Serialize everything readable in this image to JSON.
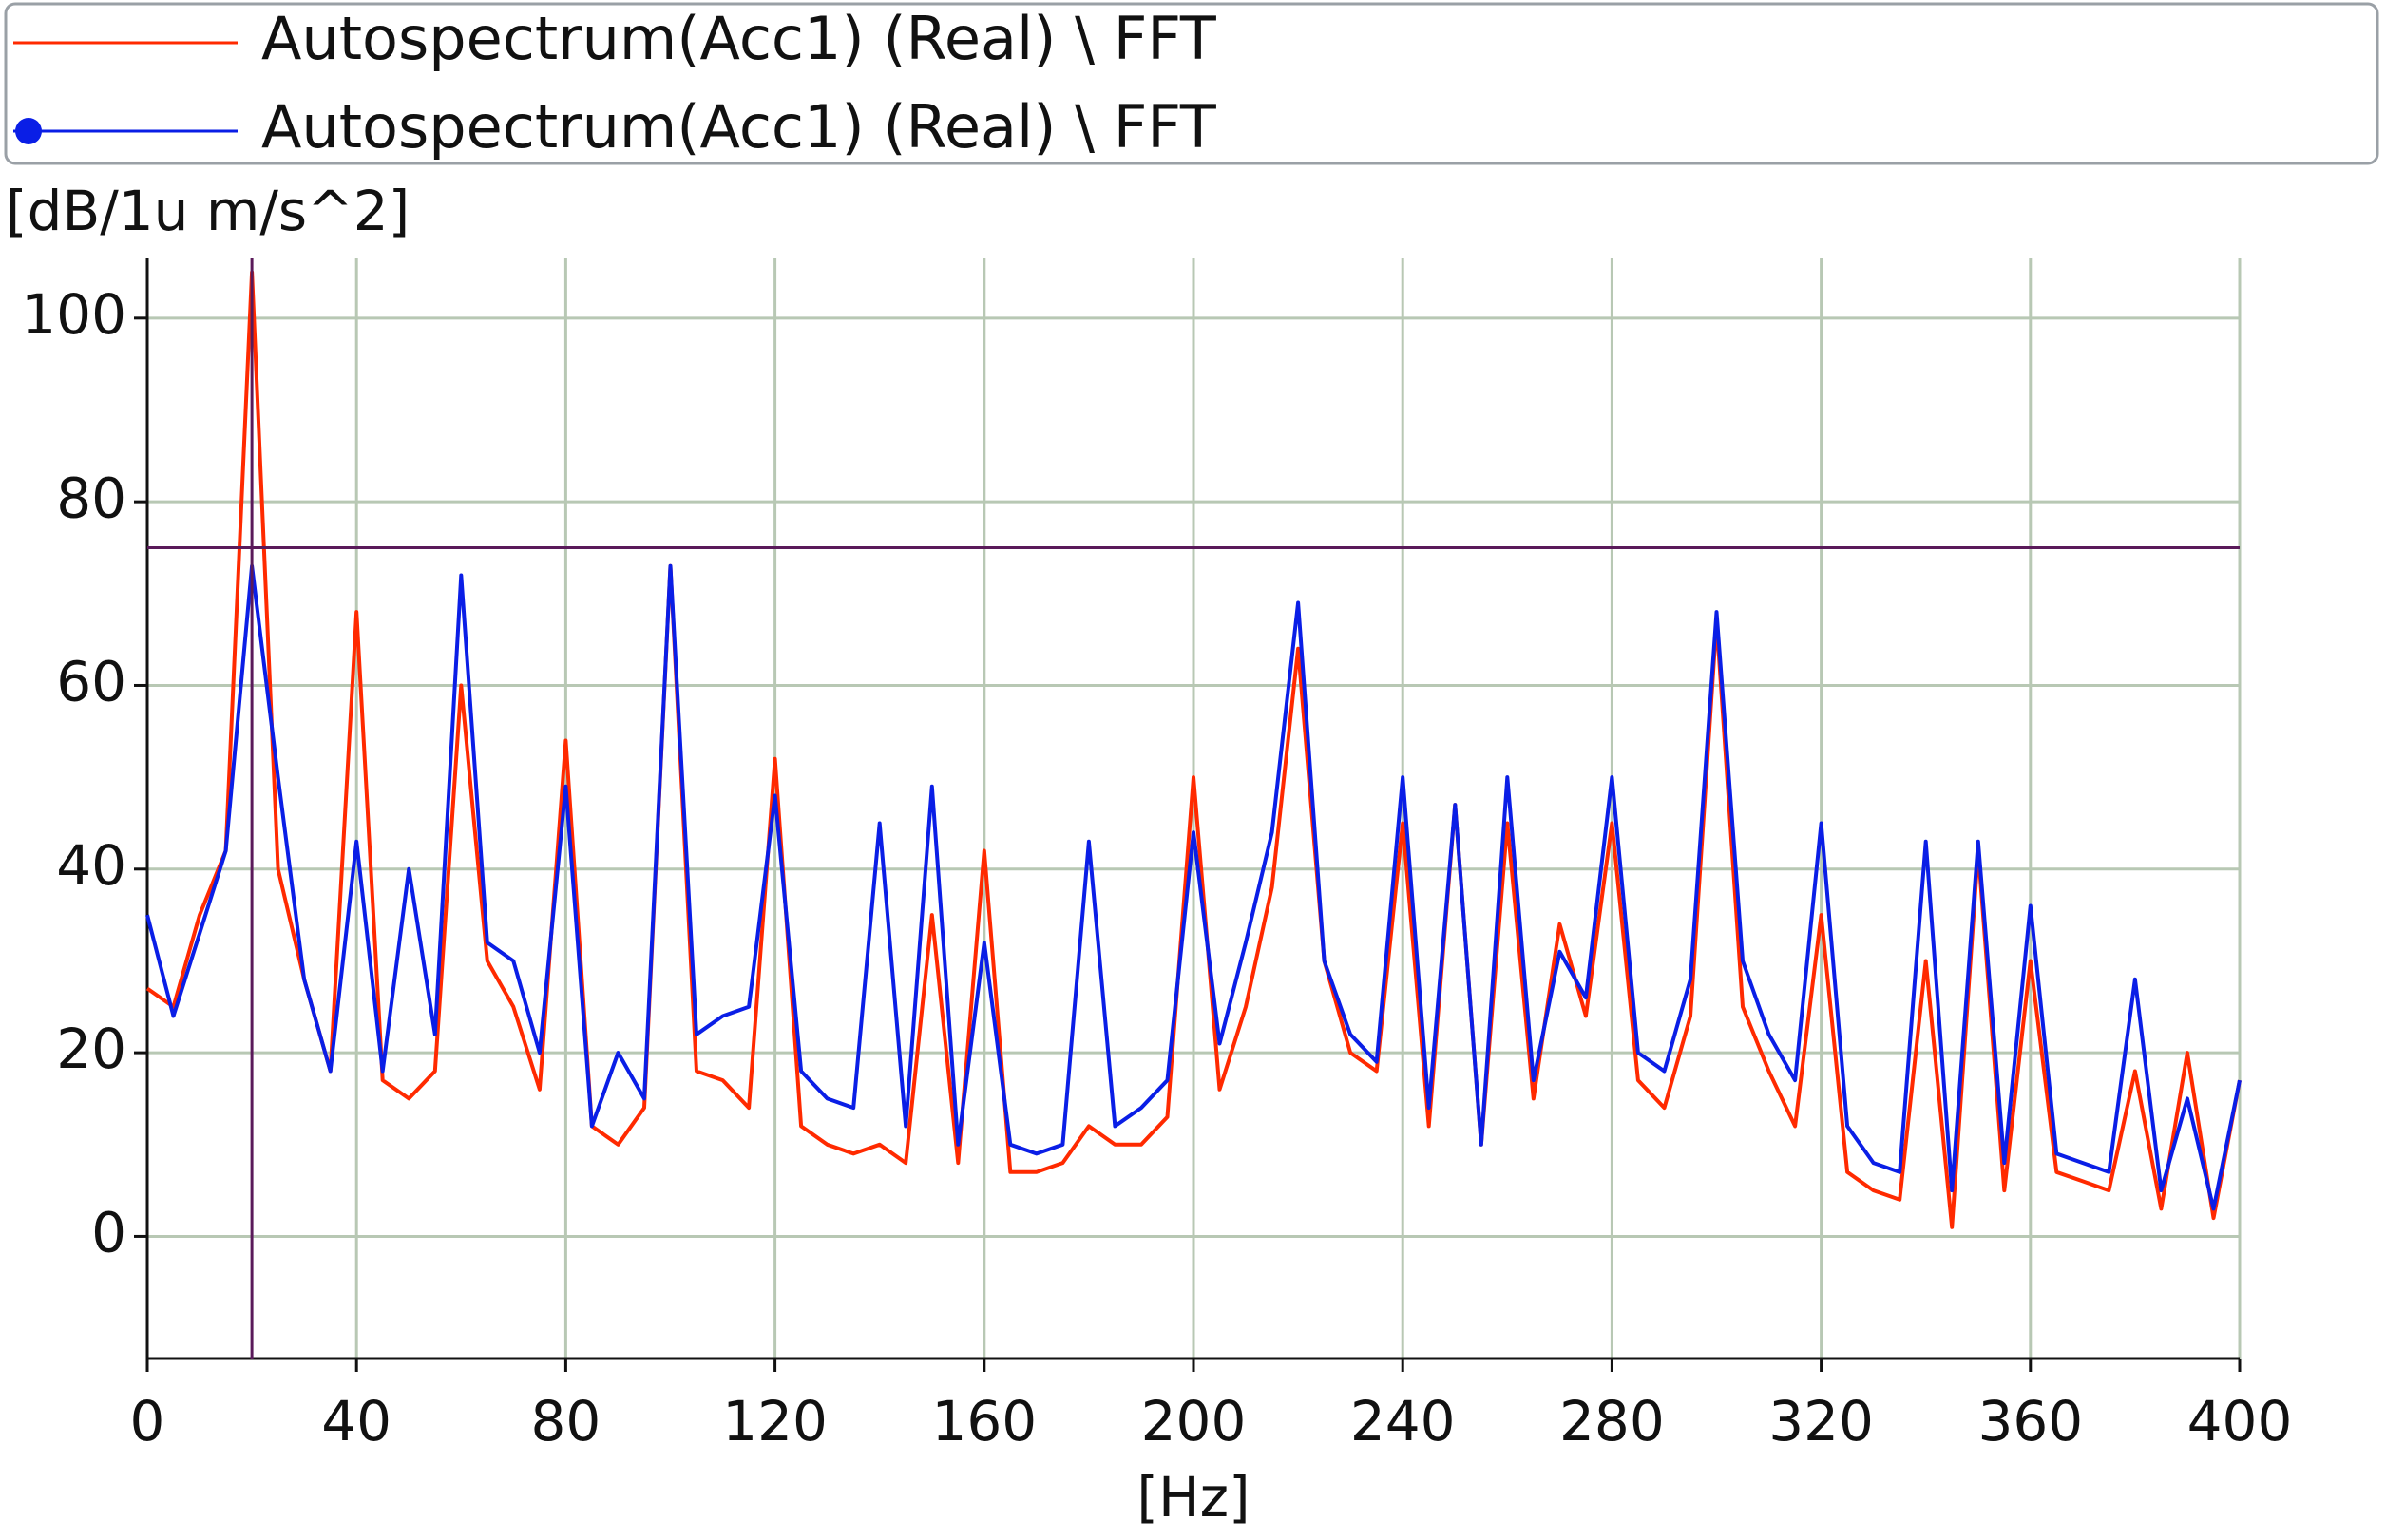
{
  "chart_data": {
    "type": "line",
    "y_label": "[dB/1u m/s^2]",
    "x_label": "[Hz]",
    "x": [
      0,
      5,
      10,
      15,
      20,
      25,
      30,
      35,
      40,
      45,
      50,
      55,
      60,
      65,
      70,
      75,
      80,
      85,
      90,
      95,
      100,
      105,
      110,
      115,
      120,
      125,
      130,
      135,
      140,
      145,
      150,
      155,
      160,
      165,
      170,
      175,
      180,
      185,
      190,
      195,
      200,
      205,
      210,
      215,
      220,
      225,
      230,
      235,
      240,
      245,
      250,
      255,
      260,
      265,
      270,
      275,
      280,
      285,
      290,
      295,
      300,
      305,
      310,
      315,
      320,
      325,
      330,
      335,
      340,
      345,
      350,
      355,
      360,
      365,
      370,
      375,
      380,
      385,
      390,
      395,
      400
    ],
    "series": [
      {
        "name": "Autospectrum(Acc1) (Real) \\ FFT",
        "color": "#ff2a00",
        "values": [
          27,
          25,
          35,
          42,
          105,
          40,
          28,
          18,
          68,
          17,
          15,
          18,
          60,
          30,
          25,
          16,
          54,
          12,
          10,
          14,
          73,
          18,
          17,
          14,
          52,
          12,
          10,
          9,
          10,
          8,
          35,
          8,
          42,
          7,
          7,
          8,
          12,
          10,
          10,
          13,
          50,
          16,
          25,
          38,
          64,
          30,
          20,
          18,
          45,
          12,
          47,
          10,
          45,
          15,
          34,
          24,
          45,
          17,
          14,
          24,
          67,
          25,
          18,
          12,
          35,
          7,
          5,
          4,
          30,
          1,
          42,
          5,
          30,
          7,
          6,
          5,
          18,
          3,
          20,
          2,
          17
        ]
      },
      {
        "name": "Autospectrum(Acc1) (Real) \\ FFT",
        "color": "#0a1ee6",
        "marker": "circle",
        "values": [
          35,
          24,
          33,
          42,
          73,
          50,
          28,
          18,
          43,
          18,
          40,
          22,
          72,
          32,
          30,
          20,
          49,
          12,
          20,
          15,
          73,
          22,
          24,
          25,
          48,
          18,
          15,
          14,
          45,
          12,
          49,
          10,
          32,
          10,
          9,
          10,
          43,
          12,
          14,
          17,
          44,
          21,
          32,
          44,
          69,
          30,
          22,
          19,
          50,
          14,
          47,
          10,
          50,
          17,
          31,
          26,
          50,
          20,
          18,
          28,
          68,
          30,
          22,
          17,
          45,
          12,
          8,
          7,
          43,
          5,
          43,
          8,
          36,
          9,
          8,
          7,
          28,
          5,
          15,
          3,
          17
        ]
      }
    ],
    "xlim": [
      0,
      400
    ],
    "ylim": [
      -13.3,
      106.5
    ],
    "xticks": [
      0,
      40,
      80,
      120,
      160,
      200,
      240,
      280,
      320,
      360,
      400
    ],
    "yticks": [
      0,
      20,
      40,
      60,
      80,
      100
    ],
    "grid": true,
    "cursor_x": 20,
    "cursor_y": 75
  }
}
